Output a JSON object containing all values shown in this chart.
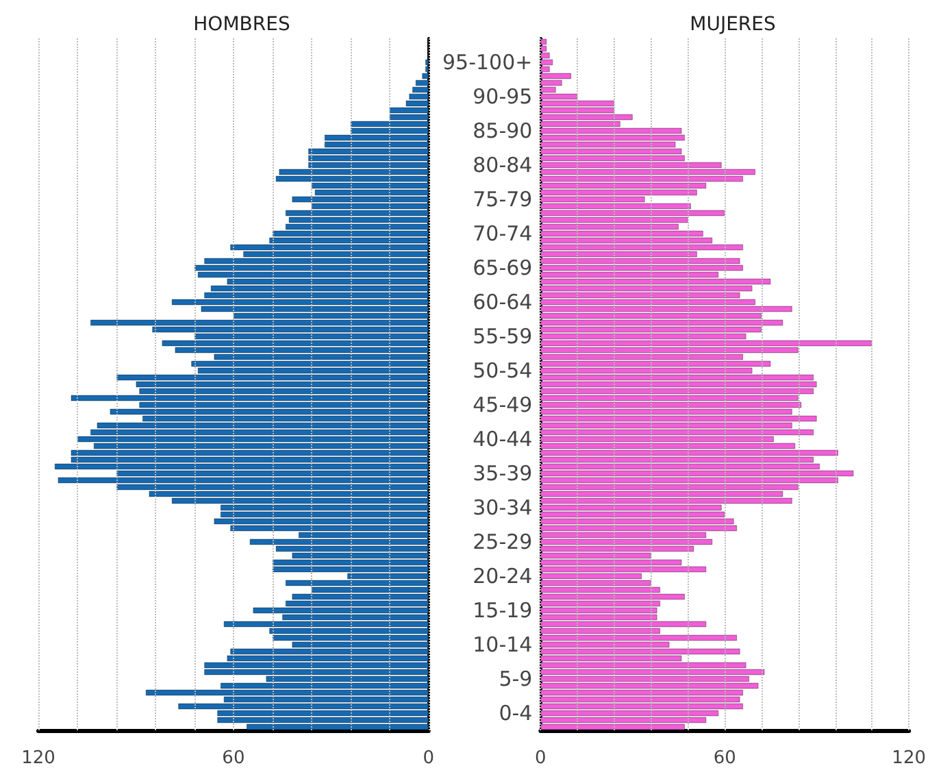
{
  "chart_data": [
    {
      "type": "bar",
      "orientation": "horizontal",
      "title": "HOMBRES",
      "tick_labels": "x",
      "grid": "x",
      "categories": [
        null,
        null,
        null,
        null,
        null,
        null,
        null,
        null,
        null,
        null,
        null,
        null,
        null,
        null,
        null,
        null,
        null,
        null,
        null,
        null,
        null,
        null,
        null,
        null,
        null,
        null,
        null,
        null,
        null,
        null,
        null,
        null,
        null,
        null,
        null,
        null,
        null,
        null,
        null,
        null,
        null,
        null,
        null,
        null,
        null,
        null,
        null,
        null,
        null,
        null,
        null,
        null,
        null,
        null,
        null,
        null,
        null,
        null,
        null,
        null,
        null,
        null,
        null,
        null,
        null,
        null,
        null,
        null,
        null,
        null,
        null,
        null,
        null,
        null,
        null,
        null,
        null,
        null,
        null,
        null,
        null,
        null,
        null,
        null,
        null,
        null,
        null,
        null,
        null,
        null,
        null,
        null,
        null,
        null,
        null,
        null,
        null,
        null,
        null,
        null,
        null
      ],
      "color": "#1769b0",
      "values": [
        null,
        null,
        null,
        1,
        1,
        2,
        4,
        5,
        6,
        7,
        12,
        12,
        24,
        24,
        32,
        32,
        37,
        37,
        37,
        46,
        47,
        36,
        35,
        42,
        36,
        44,
        43,
        44,
        48,
        49,
        61,
        57,
        69,
        72,
        71,
        62,
        67,
        69,
        79,
        70,
        60,
        104,
        85,
        72,
        82,
        78,
        66,
        73,
        71,
        96,
        90,
        89,
        110,
        89,
        98,
        88,
        102,
        104,
        108,
        103,
        110,
        110,
        115,
        96,
        114,
        96,
        86,
        79,
        64,
        64,
        66,
        61,
        40,
        55,
        47,
        42,
        48,
        48,
        25,
        44,
        36,
        42,
        44,
        54,
        45,
        63,
        49,
        48,
        42,
        61,
        62,
        69,
        69,
        50,
        64,
        87,
        63,
        77,
        65,
        65,
        56
      ],
      "xlim": [
        120,
        0
      ],
      "xticks": [
        0,
        {
          "value": 12,
          "label": null
        },
        {
          "value": 24,
          "label": null
        },
        {
          "value": 36,
          "label": null
        },
        {
          "value": 48,
          "label": null
        },
        60,
        {
          "value": 72,
          "label": null
        },
        {
          "value": 84,
          "label": null
        },
        {
          "value": 96,
          "label": null
        },
        {
          "value": 108,
          "label": null
        },
        120
      ]
    },
    {
      "type": "bar",
      "orientation": "horizontal",
      "title": "MUJERES",
      "grid": "x",
      "categories": [
        null,
        null,
        null,
        "95-100+",
        null,
        null,
        null,
        null,
        "90-95",
        null,
        null,
        null,
        null,
        "85-90",
        null,
        null,
        null,
        null,
        "80-84",
        null,
        null,
        null,
        null,
        "75-79",
        null,
        null,
        null,
        null,
        "70-74",
        null,
        null,
        null,
        null,
        "65-69",
        null,
        null,
        null,
        null,
        "60-64",
        null,
        null,
        null,
        null,
        "55-59",
        null,
        null,
        null,
        null,
        "50-54",
        null,
        null,
        null,
        null,
        "45-49",
        null,
        null,
        null,
        null,
        "40-44",
        null,
        null,
        null,
        null,
        "35-39",
        null,
        null,
        null,
        null,
        "30-34",
        null,
        null,
        null,
        null,
        "25-29",
        null,
        null,
        null,
        null,
        "20-24",
        null,
        null,
        null,
        null,
        "15-19",
        null,
        null,
        null,
        null,
        "10-14",
        null,
        null,
        null,
        null,
        "5-9",
        null,
        null,
        null,
        null,
        "0-4",
        null,
        null
      ],
      "color": "#ef5fd6",
      "values": [
        2,
        2,
        3,
        4,
        3,
        10,
        7,
        5,
        12,
        24,
        24,
        30,
        26,
        46,
        47,
        44,
        46,
        47,
        59,
        70,
        66,
        54,
        51,
        34,
        49,
        60,
        48,
        45,
        53,
        56,
        66,
        51,
        65,
        66,
        58,
        75,
        69,
        65,
        70,
        82,
        72,
        79,
        72,
        67,
        108,
        84,
        66,
        75,
        69,
        89,
        90,
        89,
        84,
        85,
        82,
        90,
        82,
        89,
        76,
        83,
        97,
        89,
        91,
        102,
        97,
        84,
        79,
        82,
        59,
        60,
        63,
        64,
        54,
        56,
        50,
        36,
        46,
        54,
        33,
        36,
        39,
        47,
        39,
        38,
        38,
        54,
        39,
        64,
        42,
        65,
        46,
        67,
        73,
        68,
        71,
        66,
        65,
        66,
        58,
        54,
        47
      ],
      "xlim": [
        0,
        120
      ],
      "xticks": [
        0,
        {
          "value": 12,
          "label": null
        },
        {
          "value": 24,
          "label": null
        },
        {
          "value": 36,
          "label": null
        },
        {
          "value": 48,
          "label": null
        },
        60,
        {
          "value": 72,
          "label": null
        },
        {
          "value": 84,
          "label": null
        },
        {
          "value": 96,
          "label": null
        },
        {
          "value": 108,
          "label": null
        },
        120
      ]
    }
  ]
}
